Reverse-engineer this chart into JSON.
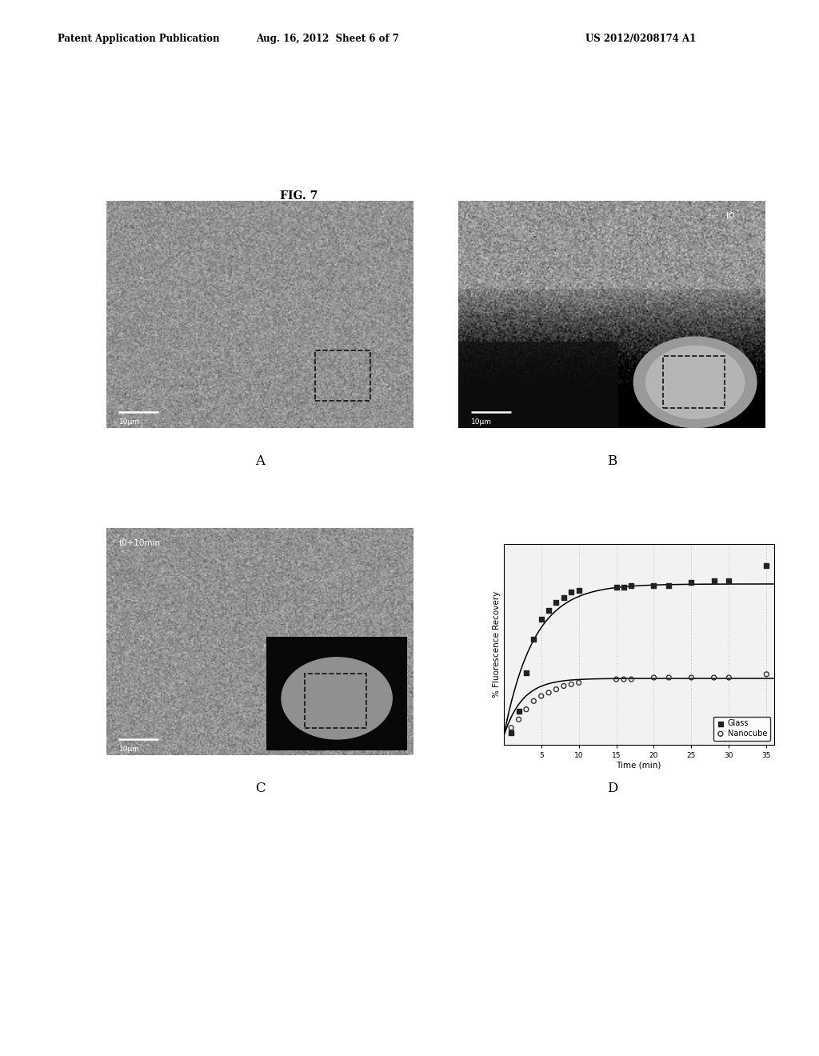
{
  "header_left": "Patent Application Publication",
  "header_center": "Aug. 16, 2012  Sheet 6 of 7",
  "header_right": "US 2012/0208174 A1",
  "fig_label": "FIG. 7",
  "panel_labels": [
    "A",
    "B",
    "C",
    "D"
  ],
  "scale_bar_text": "10μm",
  "panel_B_label": "t0",
  "panel_C_label": "t0+10min",
  "glass_data_x": [
    1,
    2,
    3,
    4,
    5,
    6,
    7,
    8,
    9,
    10,
    15,
    16,
    17,
    20,
    22,
    25,
    28,
    30,
    35
  ],
  "glass_data_y": [
    0.02,
    0.15,
    0.38,
    0.58,
    0.7,
    0.75,
    0.8,
    0.83,
    0.86,
    0.87,
    0.89,
    0.89,
    0.9,
    0.9,
    0.9,
    0.92,
    0.93,
    0.93,
    1.02
  ],
  "nanocube_data_x": [
    1,
    2,
    3,
    4,
    5,
    6,
    7,
    8,
    9,
    10,
    15,
    16,
    17,
    20,
    22,
    25,
    28,
    30,
    35
  ],
  "nanocube_data_y": [
    0.05,
    0.1,
    0.16,
    0.21,
    0.24,
    0.26,
    0.28,
    0.3,
    0.31,
    0.32,
    0.34,
    0.34,
    0.34,
    0.35,
    0.35,
    0.35,
    0.35,
    0.35,
    0.37
  ],
  "xlabel": "Time (min)",
  "ylabel": "% Fluorescence Recovery",
  "xlim": [
    0,
    36
  ],
  "ylim": [
    -0.05,
    1.15
  ],
  "xticks": [
    5,
    10,
    15,
    20,
    25,
    30,
    35
  ],
  "background_color": "#ffffff",
  "glass_tau": 4.0,
  "glass_plateau": 0.91,
  "nano_tau": 2.5,
  "nano_plateau": 0.345
}
